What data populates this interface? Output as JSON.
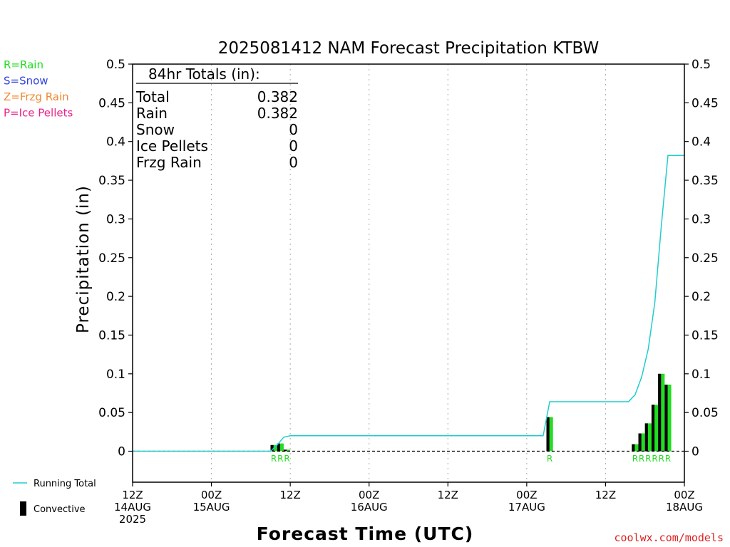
{
  "chart_data": {
    "type": "bar",
    "title": "2025081412 NAM Forecast Precipitation KTBW",
    "xlabel": "Forecast Time (UTC)",
    "ylabel": "Precipitation (in)",
    "ylim": [
      -0.04,
      0.5
    ],
    "yticks": [
      0,
      0.05,
      0.1,
      0.15,
      0.2,
      0.25,
      0.3,
      0.35,
      0.4,
      0.45,
      0.5
    ],
    "ytick_labels": [
      "0",
      "0.05",
      "0.1",
      "0.15",
      "0.2",
      "0.25",
      "0.3",
      "0.35",
      "0.4",
      "0.45",
      "0.5"
    ],
    "x_unit": "forecast hour",
    "xlim": [
      0,
      84
    ],
    "xticks": [
      {
        "hour": 0,
        "lines": [
          "12Z",
          "14AUG",
          "2025"
        ]
      },
      {
        "hour": 12,
        "lines": [
          "00Z",
          "15AUG"
        ]
      },
      {
        "hour": 24,
        "lines": [
          "12Z"
        ]
      },
      {
        "hour": 36,
        "lines": [
          "00Z",
          "16AUG"
        ]
      },
      {
        "hour": 48,
        "lines": [
          "12Z"
        ]
      },
      {
        "hour": 60,
        "lines": [
          "00Z",
          "17AUG"
        ]
      },
      {
        "hour": 72,
        "lines": [
          "12Z"
        ]
      },
      {
        "hour": 84,
        "lines": [
          "00Z",
          "18AUG"
        ]
      }
    ],
    "bars": [
      {
        "hour": 21.5,
        "total": 0.008,
        "convective": 0.008
      },
      {
        "hour": 22.5,
        "total": 0.01,
        "convective": 0.01
      },
      {
        "hour": 23.5,
        "total": 0.002,
        "convective": 0.002
      },
      {
        "hour": 63.5,
        "total": 0.044,
        "convective": 0.044
      },
      {
        "hour": 76.5,
        "total": 0.009,
        "convective": 0.009
      },
      {
        "hour": 77.5,
        "total": 0.023,
        "convective": 0.023
      },
      {
        "hour": 78.5,
        "total": 0.036,
        "convective": 0.036
      },
      {
        "hour": 79.5,
        "total": 0.06,
        "convective": 0.06
      },
      {
        "hour": 80.5,
        "total": 0.1,
        "convective": 0.1
      },
      {
        "hour": 81.5,
        "total": 0.086,
        "convective": 0.086
      }
    ],
    "running_total": {
      "name": "Running Total",
      "points": [
        [
          0,
          0
        ],
        [
          21,
          0
        ],
        [
          22,
          0.008
        ],
        [
          23,
          0.018
        ],
        [
          24,
          0.02
        ],
        [
          62.5,
          0.02
        ],
        [
          63.5,
          0.064
        ],
        [
          75.5,
          0.064
        ],
        [
          76.5,
          0.073
        ],
        [
          77.5,
          0.096
        ],
        [
          78.5,
          0.132
        ],
        [
          79.5,
          0.192
        ],
        [
          80.5,
          0.292
        ],
        [
          81.5,
          0.382
        ],
        [
          84,
          0.382
        ]
      ]
    },
    "ptype_markers": [
      {
        "hour": 21.5,
        "label": "R"
      },
      {
        "hour": 22.5,
        "label": "R"
      },
      {
        "hour": 23.5,
        "label": "R"
      },
      {
        "hour": 63.5,
        "label": "R"
      },
      {
        "hour": 76.5,
        "label": "R"
      },
      {
        "hour": 77.5,
        "label": "R"
      },
      {
        "hour": 78.5,
        "label": "R"
      },
      {
        "hour": 79.5,
        "label": "R"
      },
      {
        "hour": 80.5,
        "label": "R"
      },
      {
        "hour": 81.5,
        "label": "R"
      }
    ],
    "totals_box": {
      "heading": "84hr Totals (in):",
      "rows": [
        {
          "label": "Total",
          "value": "0.382"
        },
        {
          "label": "Rain",
          "value": "0.382"
        },
        {
          "label": "Snow",
          "value": "0"
        },
        {
          "label": "Ice Pellets",
          "value": "0"
        },
        {
          "label": "Frzg Rain",
          "value": "0"
        }
      ]
    },
    "ptype_legend": [
      {
        "text": "R=Rain",
        "color": "#22dd22"
      },
      {
        "text": "S=Snow",
        "color": "#3344dd"
      },
      {
        "text": "Z=Frzg Rain",
        "color": "#ee8833"
      },
      {
        "text": "P=Ice Pellets",
        "color": "#ee2288"
      }
    ],
    "series_legend": [
      {
        "text": "Running Total",
        "color": "#22cccc",
        "kind": "line"
      },
      {
        "text": "Convective",
        "color": "#000000",
        "kind": "bar"
      }
    ],
    "colors": {
      "bar_total": "#22dd22",
      "bar_convective": "#000000",
      "running_total": "#22cccc",
      "marker": "#22dd22",
      "grid": "#aaaaaa",
      "credit": "#dd2222"
    },
    "grid": true,
    "credit": "coolwx.com/models"
  }
}
